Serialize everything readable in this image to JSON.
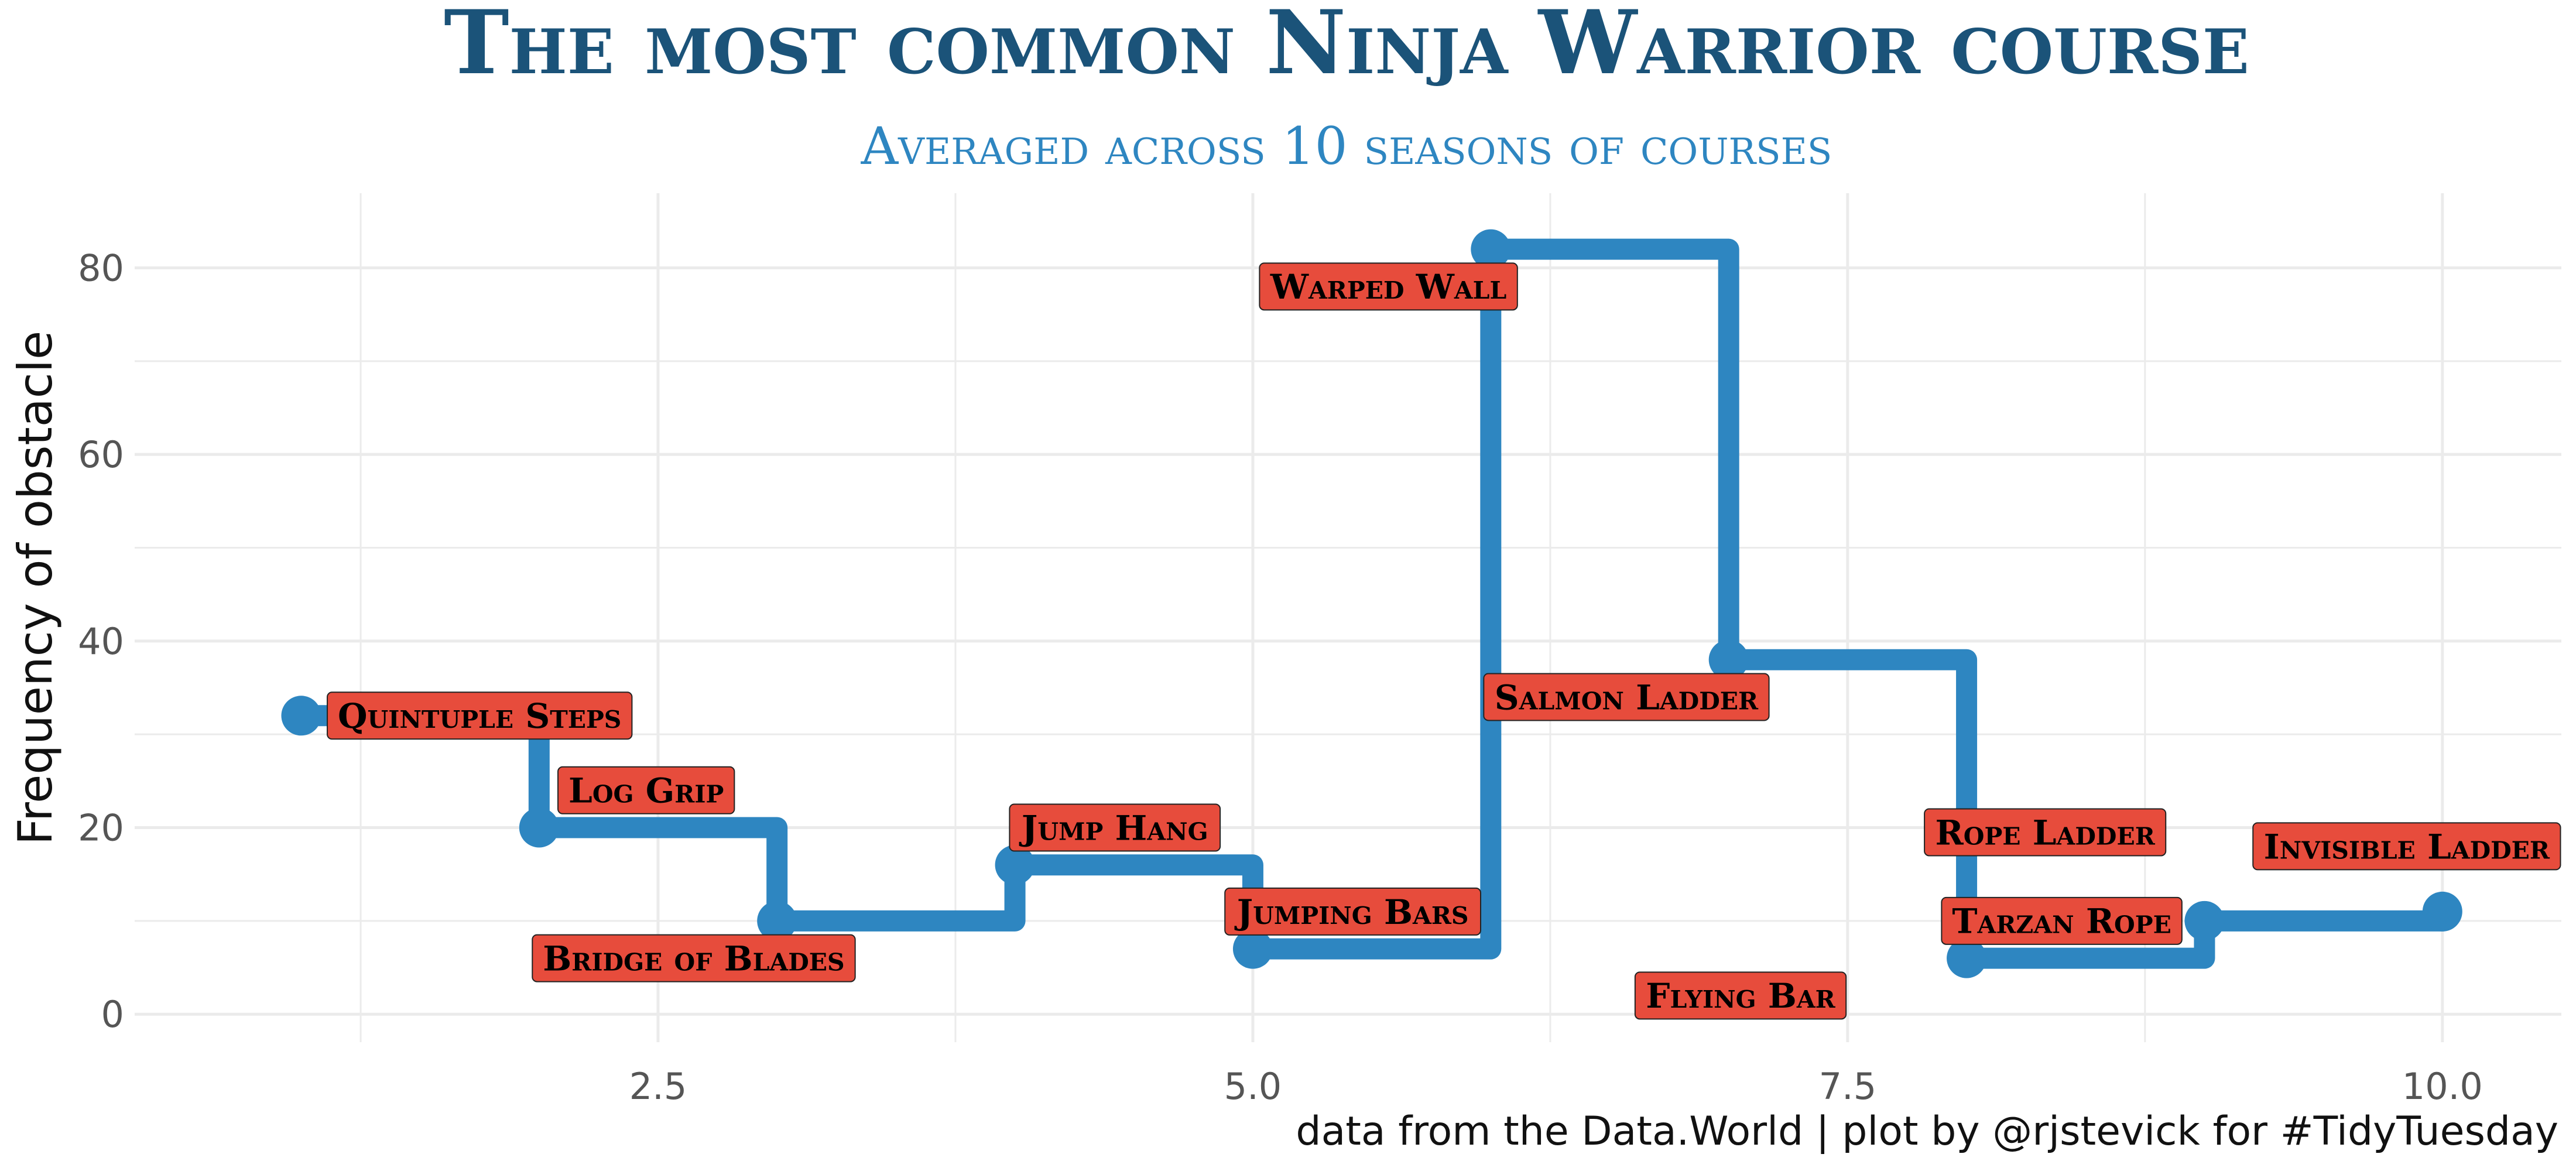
{
  "chart_data": {
    "type": "line",
    "title": "The most common Ninja Warrior course",
    "subtitle": "Averaged across 10 seasons of courses",
    "xlabel": "",
    "ylabel": "Frequency of obstacle",
    "caption": "data from the Data.World | plot by @rjstevick for #TidyTuesday",
    "step": "hv",
    "xlim": [
      0.3,
      10.5
    ],
    "ylim": [
      -3,
      88
    ],
    "x_ticks": [
      2.5,
      5.0,
      7.5,
      10.0
    ],
    "x_tick_labels": [
      "2.5",
      "5.0",
      "7.5",
      "10.0"
    ],
    "y_ticks": [
      0,
      20,
      40,
      60,
      80
    ],
    "y_tick_labels": [
      "0",
      "20",
      "40",
      "60",
      "80"
    ],
    "grid": true,
    "points": [
      {
        "x": 1,
        "y": 32,
        "obstacle": "Quintuple Steps"
      },
      {
        "x": 2,
        "y": 20,
        "obstacle": "Log Grip"
      },
      {
        "x": 3,
        "y": 10,
        "obstacle": "Bridge of Blades"
      },
      {
        "x": 4,
        "y": 16,
        "obstacle": "Jump Hang"
      },
      {
        "x": 5,
        "y": 7,
        "obstacle": "Jumping Bars"
      },
      {
        "x": 6,
        "y": 82,
        "obstacle": "Warped Wall"
      },
      {
        "x": 7,
        "y": 38,
        "obstacle": "Salmon Ladder"
      },
      {
        "x": 8,
        "y": 6,
        "obstacle": "Rope Ladder"
      },
      {
        "x": 9,
        "y": 10,
        "obstacle": "Tarzan Rope"
      },
      {
        "x": 10,
        "y": 11,
        "obstacle": "Invisible Ladder"
      }
    ],
    "labels": [
      {
        "text": "Quintuple Steps",
        "x": 1.75,
        "y": 32
      },
      {
        "text": "Log Grip",
        "x": 2.45,
        "y": 24
      },
      {
        "text": "Bridge of Blades",
        "x": 2.65,
        "y": 6
      },
      {
        "text": "Jump Hang",
        "x": 4.42,
        "y": 20
      },
      {
        "text": "Jumping Bars",
        "x": 5.42,
        "y": 11
      },
      {
        "text": "Warped Wall",
        "x": 5.57,
        "y": 78
      },
      {
        "text": "Salmon Ladder",
        "x": 6.57,
        "y": 34
      },
      {
        "text": "Rope Ladder",
        "x": 8.33,
        "y": 19.5
      },
      {
        "text": "Tarzan Rope",
        "x": 8.4,
        "y": 10
      },
      {
        "text": "Flying Bar",
        "x": 7.05,
        "y": 2
      },
      {
        "text": "Invisible Ladder",
        "x": 9.85,
        "y": 18
      }
    ],
    "colors": {
      "line": "#2e86c1",
      "label_fill": "#e74c3c",
      "label_border": "#222222",
      "title": "#1b5379",
      "subtitle": "#2e86c1",
      "grid": "#ebebeb"
    }
  }
}
